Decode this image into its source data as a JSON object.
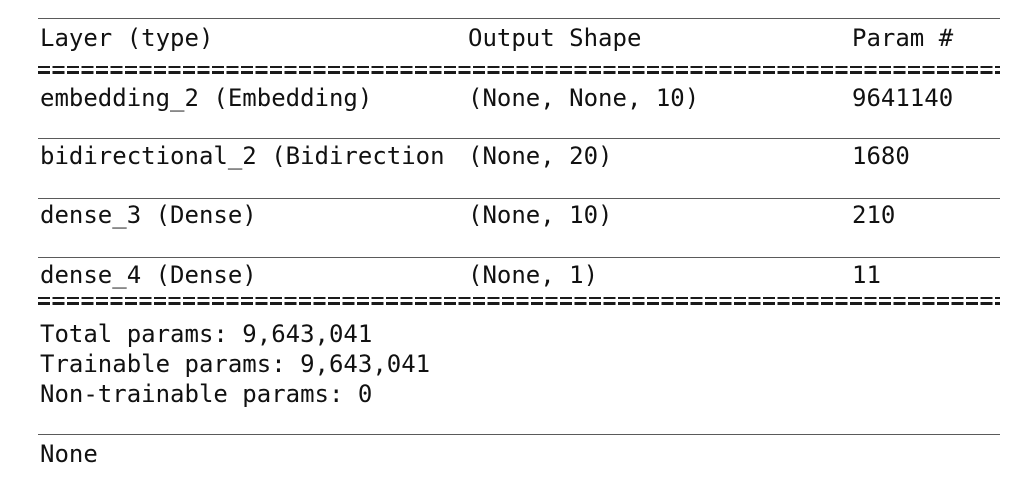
{
  "header": {
    "layer_col": "Layer (type)",
    "shape_col": "Output Shape",
    "param_col": "Param #"
  },
  "rows": [
    {
      "layer": "embedding_2 (Embedding)",
      "shape": "(None, None, 10)",
      "params": "9641140"
    },
    {
      "layer": "bidirectional_2 (Bidirection",
      "shape": "(None, 20)",
      "params": "1680"
    },
    {
      "layer": "dense_3 (Dense)",
      "shape": "(None, 10)",
      "params": "210"
    },
    {
      "layer": "dense_4 (Dense)",
      "shape": "(None, 1)",
      "params": "11"
    }
  ],
  "totals": {
    "total": "Total params: 9,643,041",
    "trainable": "Trainable params: 9,643,041",
    "non_trainable": "Non-trainable params: 0"
  },
  "footer": {
    "return_value": "None"
  }
}
